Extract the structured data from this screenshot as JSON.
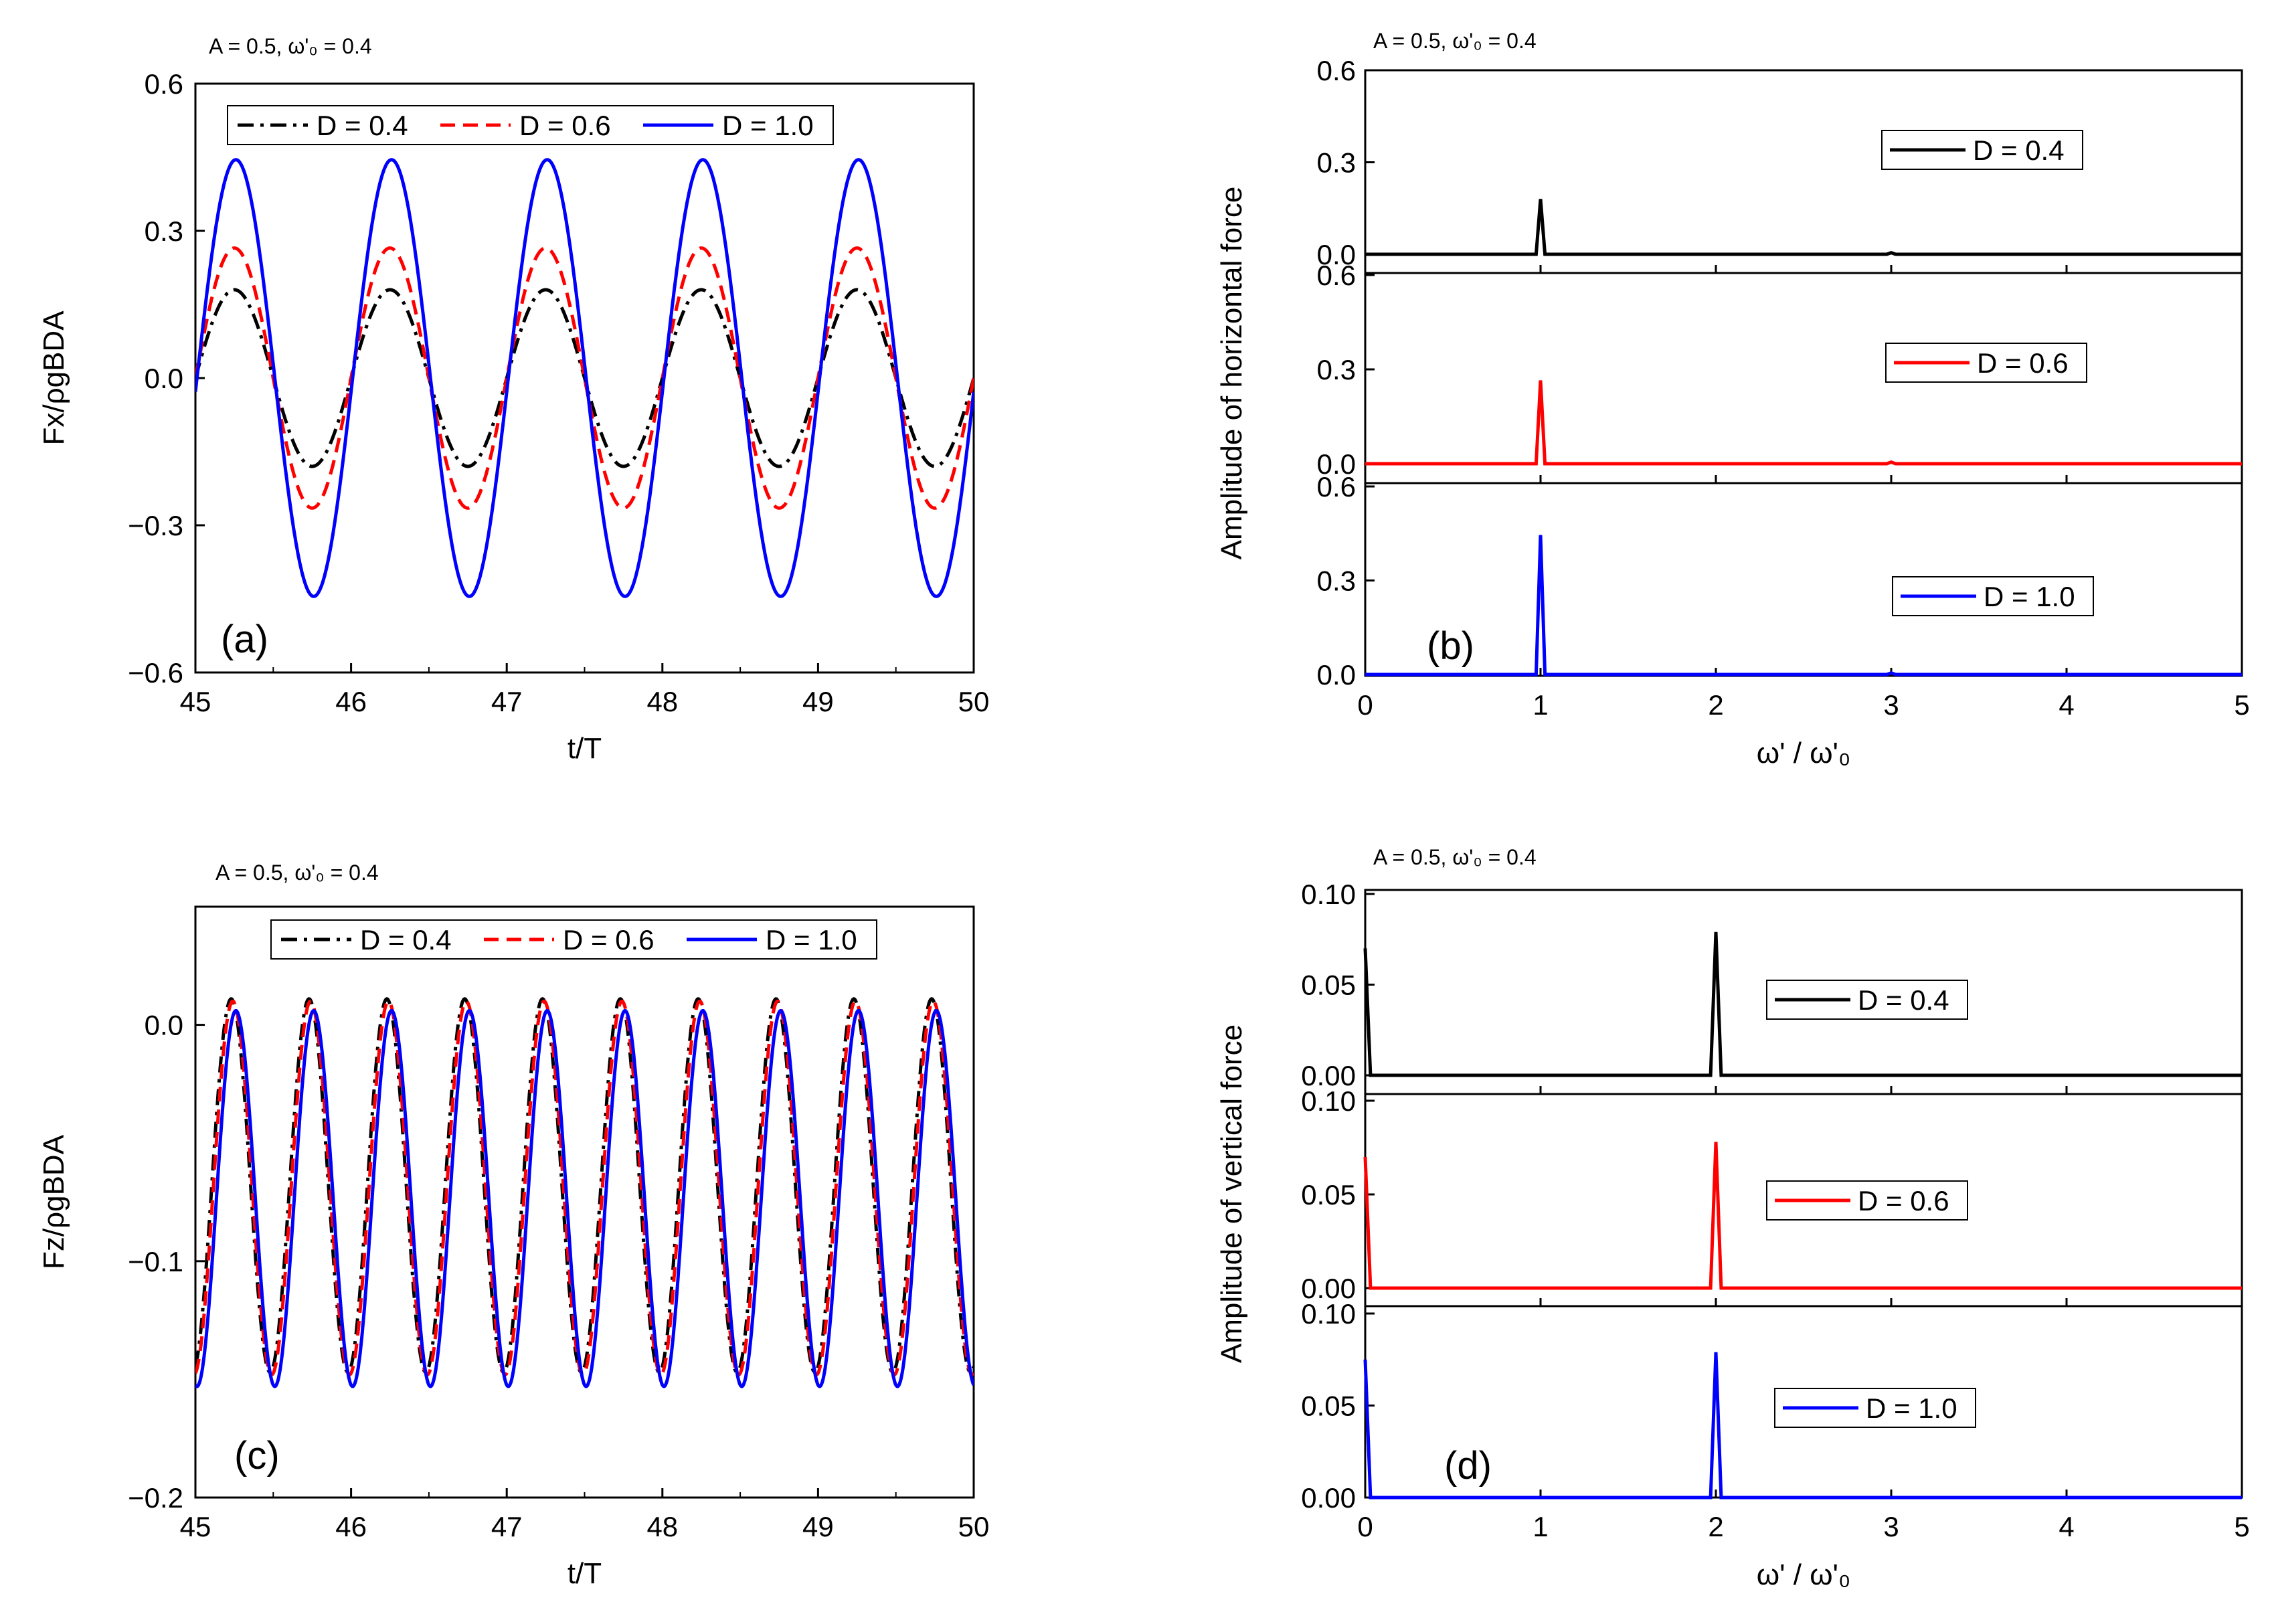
{
  "figure": {
    "panels": [
      {
        "id": "a",
        "letter": "(a)",
        "condition": "A = 0.5, ω'₀ = 0.4"
      },
      {
        "id": "b",
        "letter": "(b)",
        "condition": "A = 0.5, ω'₀ = 0.4"
      },
      {
        "id": "c",
        "letter": "(c)",
        "condition": "A = 0.5, ω'₀ = 0.4"
      },
      {
        "id": "d",
        "letter": "(d)",
        "condition": "A = 0.5, ω'₀ = 0.4"
      }
    ]
  },
  "series_style": [
    {
      "name": "D = 0.4",
      "color": "#000000",
      "dash": "dashdot"
    },
    {
      "name": "D = 0.6",
      "color": "#ff0000",
      "dash": "dash"
    },
    {
      "name": "D = 1.0",
      "color": "#0000ff",
      "dash": "solid"
    }
  ],
  "chart_data": [
    {
      "id": "a",
      "type": "line",
      "title": "",
      "xlabel": "t/T",
      "ylabel": "Fx/ρgBDA",
      "xlim": [
        45,
        50
      ],
      "ylim": [
        -0.6,
        0.6
      ],
      "xticks": [
        45,
        46,
        47,
        48,
        49,
        50
      ],
      "yticks": [
        -0.6,
        -0.3,
        0.0,
        0.3,
        0.6
      ],
      "xtick_labels": [
        "45",
        "46",
        "47",
        "48",
        "49",
        "50"
      ],
      "ytick_labels": [
        "−0.6",
        "−0.3",
        "0.0",
        "0.3",
        "0.6"
      ],
      "legend": "top",
      "series": [
        {
          "name": "D = 0.4",
          "form": "sinusoid",
          "amplitude": 0.18,
          "period": 1.0,
          "phase_peak_t": 45.25,
          "mean": 0.0
        },
        {
          "name": "D = 0.6",
          "form": "sinusoid",
          "amplitude": 0.265,
          "period": 1.0,
          "phase_peak_t": 45.25,
          "mean": 0.0
        },
        {
          "name": "D = 1.0",
          "form": "sinusoid",
          "amplitude": 0.445,
          "period": 1.0,
          "phase_peak_t": 45.26,
          "mean": 0.0
        }
      ]
    },
    {
      "id": "c",
      "type": "line",
      "title": "",
      "xlabel": "t/T",
      "ylabel": "Fz/ρgBDA",
      "xlim": [
        45,
        50
      ],
      "ylim": [
        -0.2,
        0.05
      ],
      "xticks": [
        45,
        46,
        47,
        48,
        49,
        50
      ],
      "yticks": [
        -0.2,
        -0.1,
        0.0
      ],
      "xtick_labels": [
        "45",
        "46",
        "47",
        "48",
        "49",
        "50"
      ],
      "ytick_labels": [
        "−0.2",
        "−0.1",
        "0.0"
      ],
      "legend": "top",
      "series": [
        {
          "name": "D = 0.4",
          "form": "sinusoid",
          "period": 0.5,
          "max": 0.011,
          "min": -0.147,
          "phase_peak_t": 45.23
        },
        {
          "name": "D = 0.6",
          "form": "sinusoid",
          "period": 0.5,
          "max": 0.01,
          "min": -0.148,
          "phase_peak_t": 45.24
        },
        {
          "name": "D = 1.0",
          "form": "sinusoid",
          "period": 0.5,
          "max": 0.006,
          "min": -0.153,
          "phase_peak_t": 45.26
        }
      ]
    },
    {
      "id": "b",
      "type": "line",
      "stacked": true,
      "xlabel": "ω' / ω'₀",
      "ylabel": "Amplitude of horizontal force",
      "xlim": [
        0,
        5
      ],
      "ylim": [
        0,
        0.6
      ],
      "xticks": [
        0,
        1,
        2,
        3,
        4,
        5
      ],
      "xtick_labels": [
        "0",
        "1",
        "2",
        "3",
        "4",
        "5"
      ],
      "yticks": [
        0.0,
        0.3,
        0.6
      ],
      "ytick_labels": [
        "0.0",
        "0.3",
        "0.6"
      ],
      "subplots": [
        {
          "name": "D = 0.4",
          "peaks": [
            {
              "x": 1.0,
              "y": 0.18
            },
            {
              "x": 3.0,
              "y": 0.005
            }
          ]
        },
        {
          "name": "D = 0.6",
          "peaks": [
            {
              "x": 1.0,
              "y": 0.265
            },
            {
              "x": 3.0,
              "y": 0.005
            }
          ]
        },
        {
          "name": "D = 1.0",
          "peaks": [
            {
              "x": 1.0,
              "y": 0.445
            },
            {
              "x": 3.0,
              "y": 0.005
            }
          ]
        }
      ]
    },
    {
      "id": "d",
      "type": "line",
      "stacked": true,
      "xlabel": "ω' / ω'₀",
      "ylabel": "Amplitude of vertical force",
      "xlim": [
        0,
        5
      ],
      "ylim": [
        0,
        0.1
      ],
      "xticks": [
        0,
        1,
        2,
        3,
        4,
        5
      ],
      "xtick_labels": [
        "0",
        "1",
        "2",
        "3",
        "4",
        "5"
      ],
      "yticks": [
        0.0,
        0.05,
        0.1
      ],
      "ytick_labels": [
        "0.00",
        "0.05",
        "0.10"
      ],
      "subplots": [
        {
          "name": "D = 0.4",
          "peaks": [
            {
              "x": 0.0,
              "y": 0.07
            },
            {
              "x": 2.0,
              "y": 0.079
            }
          ]
        },
        {
          "name": "D = 0.6",
          "peaks": [
            {
              "x": 0.0,
              "y": 0.07
            },
            {
              "x": 2.0,
              "y": 0.078
            }
          ]
        },
        {
          "name": "D = 1.0",
          "peaks": [
            {
              "x": 0.0,
              "y": 0.075
            },
            {
              "x": 2.0,
              "y": 0.079
            }
          ]
        }
      ]
    }
  ]
}
